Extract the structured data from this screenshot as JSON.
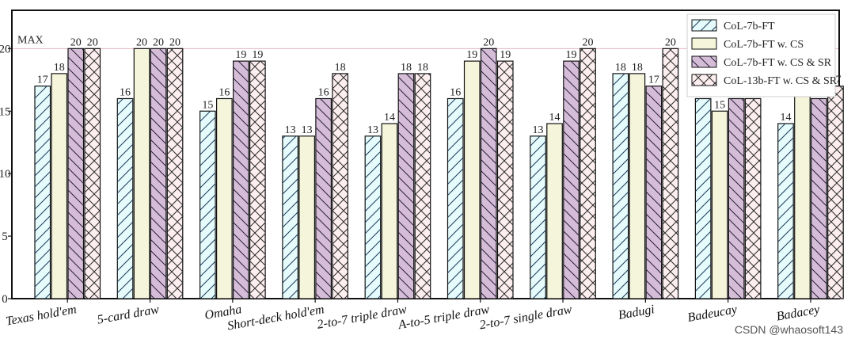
{
  "chart_data": {
    "type": "bar",
    "categories": [
      "Texas hold'em",
      "5-card draw",
      "Omaha",
      "Short-deck hold'em",
      "2-to-7 triple draw",
      "A-to-5 triple draw",
      "2-to-7 single draw",
      "Badugi",
      "Badeucay",
      "Badacey"
    ],
    "series": [
      {
        "name": "CoL-7b-FT",
        "values": [
          17,
          16,
          15,
          13,
          13,
          16,
          13,
          18,
          16,
          14
        ],
        "color": "#e6fbfb",
        "hatch": "/"
      },
      {
        "name": "CoL-7b-FT w. CS",
        "values": [
          18,
          20,
          16,
          13,
          14,
          19,
          14,
          18,
          15,
          17
        ],
        "color": "#f5f5dc",
        "hatch": "none"
      },
      {
        "name": "CoL-7b-FT w. CS & SR",
        "values": [
          20,
          20,
          19,
          16,
          18,
          20,
          19,
          17,
          16,
          16
        ],
        "color": "#d5bdd8",
        "hatch": "\\"
      },
      {
        "name": "CoL-13b-FT w. CS & SR",
        "values": [
          20,
          20,
          19,
          18,
          18,
          19,
          20,
          20,
          16,
          17
        ],
        "color": "#fdeef0",
        "hatch": "x"
      }
    ],
    "ylim": [
      0,
      23
    ],
    "yticks": [
      0,
      5,
      10,
      15,
      20
    ],
    "max_line": {
      "value": 20,
      "label": "MAX",
      "color": "#e8b4c0"
    },
    "legend_position": "top-right",
    "grid": false
  },
  "watermark": "CSDN @whaosoft143"
}
